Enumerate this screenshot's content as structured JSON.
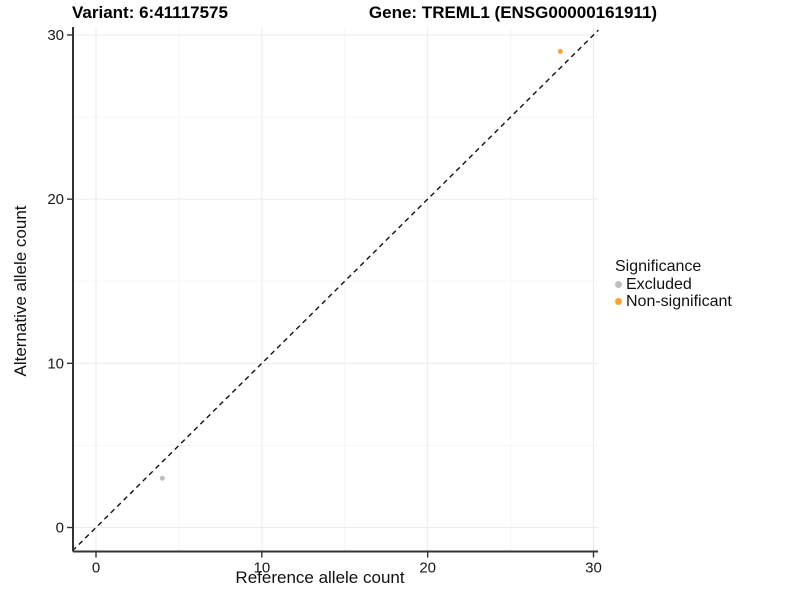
{
  "titles": {
    "variant": "Variant: 6:41117575",
    "gene": "Gene: TREML1 (ENSG00000161911)"
  },
  "chart_data": {
    "type": "scatter",
    "xlabel": "Reference allele count",
    "ylabel": "Alternative allele count",
    "xlim": [
      -1.4,
      30.3
    ],
    "ylim": [
      -1.45,
      30.4
    ],
    "x_ticks": [
      0,
      10,
      20,
      30
    ],
    "y_ticks": [
      0,
      10,
      20,
      30
    ],
    "x_minor_ticks": [
      5,
      15,
      25
    ],
    "y_minor_ticks": [
      5,
      15,
      25
    ],
    "grid": true,
    "identity_line": {
      "style": "dashed",
      "slope": 1,
      "intercept": 0,
      "from": [
        -1.42,
        -1.42
      ],
      "to": [
        30.3,
        30.3
      ]
    },
    "series": [
      {
        "name": "Excluded",
        "color": "#BEBEBE",
        "points": [
          [
            4,
            3
          ]
        ]
      },
      {
        "name": "Non-significant",
        "color": "#F8A432",
        "points": [
          [
            28,
            29
          ]
        ]
      }
    ],
    "legend": {
      "title": "Significance",
      "position": "right"
    },
    "point_radius_px": 2.5
  },
  "colors": {
    "background": "#FFFFFF",
    "grid_major": "#EBEBEB",
    "grid_minor": "#F5F5F5",
    "axis_line": "#333333",
    "tick_label": "#1A1A1A",
    "identity_line": "#111111"
  }
}
